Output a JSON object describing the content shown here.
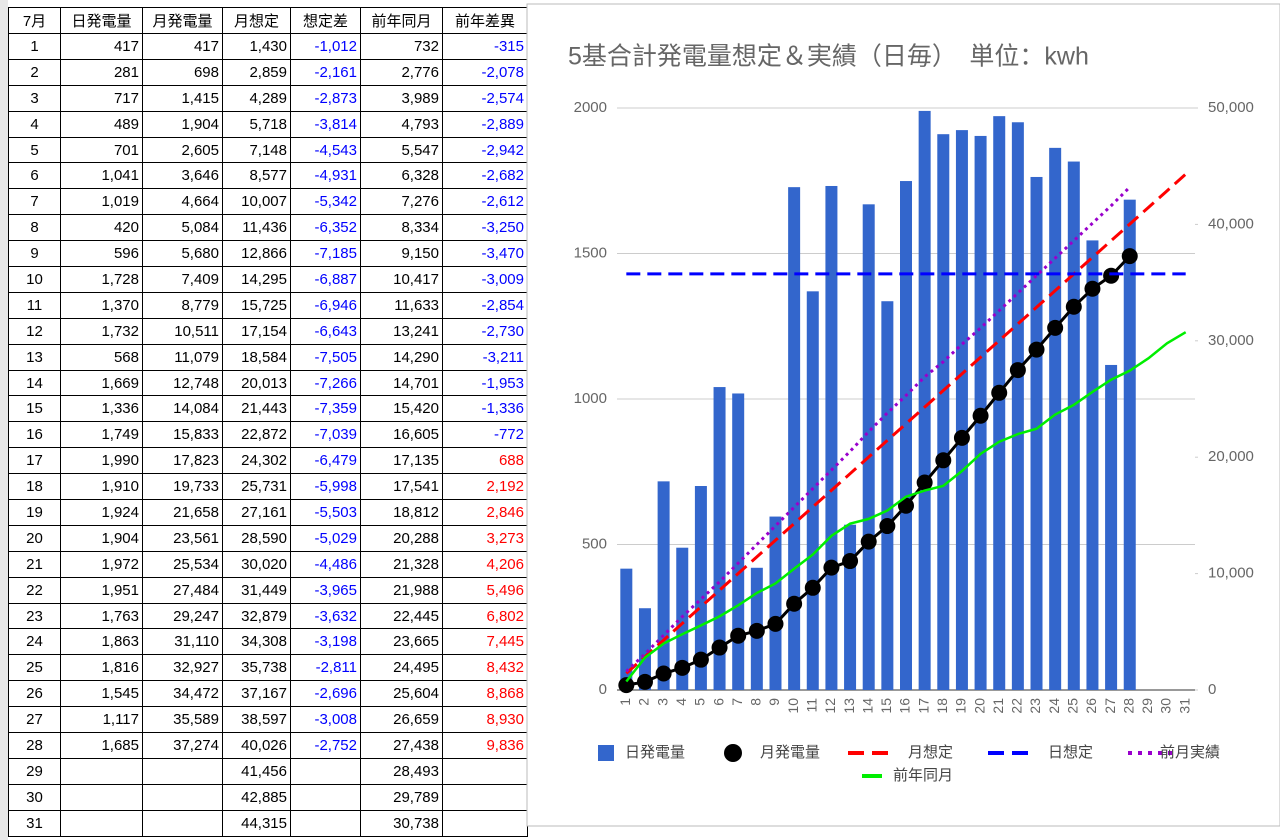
{
  "table": {
    "header": [
      "7月",
      "日発電量",
      "月発電量",
      "月想定",
      "想定差",
      "前年同月",
      "前年差異"
    ],
    "rows": [
      [
        "1",
        "417",
        "417",
        "1,430",
        "-1,012",
        "732",
        "-315"
      ],
      [
        "2",
        "281",
        "698",
        "2,859",
        "-2,161",
        "2,776",
        "-2,078"
      ],
      [
        "3",
        "717",
        "1,415",
        "4,289",
        "-2,873",
        "3,989",
        "-2,574"
      ],
      [
        "4",
        "489",
        "1,904",
        "5,718",
        "-3,814",
        "4,793",
        "-2,889"
      ],
      [
        "5",
        "701",
        "2,605",
        "7,148",
        "-4,543",
        "5,547",
        "-2,942"
      ],
      [
        "6",
        "1,041",
        "3,646",
        "8,577",
        "-4,931",
        "6,328",
        "-2,682"
      ],
      [
        "7",
        "1,019",
        "4,664",
        "10,007",
        "-5,342",
        "7,276",
        "-2,612"
      ],
      [
        "8",
        "420",
        "5,084",
        "11,436",
        "-6,352",
        "8,334",
        "-3,250"
      ],
      [
        "9",
        "596",
        "5,680",
        "12,866",
        "-7,185",
        "9,150",
        "-3,470"
      ],
      [
        "10",
        "1,728",
        "7,409",
        "14,295",
        "-6,887",
        "10,417",
        "-3,009"
      ],
      [
        "11",
        "1,370",
        "8,779",
        "15,725",
        "-6,946",
        "11,633",
        "-2,854"
      ],
      [
        "12",
        "1,732",
        "10,511",
        "17,154",
        "-6,643",
        "13,241",
        "-2,730"
      ],
      [
        "13",
        "568",
        "11,079",
        "18,584",
        "-7,505",
        "14,290",
        "-3,211"
      ],
      [
        "14",
        "1,669",
        "12,748",
        "20,013",
        "-7,266",
        "14,701",
        "-1,953"
      ],
      [
        "15",
        "1,336",
        "14,084",
        "21,443",
        "-7,359",
        "15,420",
        "-1,336"
      ],
      [
        "16",
        "1,749",
        "15,833",
        "22,872",
        "-7,039",
        "16,605",
        "-772"
      ],
      [
        "17",
        "1,990",
        "17,823",
        "24,302",
        "-6,479",
        "17,135",
        "688"
      ],
      [
        "18",
        "1,910",
        "19,733",
        "25,731",
        "-5,998",
        "17,541",
        "2,192"
      ],
      [
        "19",
        "1,924",
        "21,658",
        "27,161",
        "-5,503",
        "18,812",
        "2,846"
      ],
      [
        "20",
        "1,904",
        "23,561",
        "28,590",
        "-5,029",
        "20,288",
        "3,273"
      ],
      [
        "21",
        "1,972",
        "25,534",
        "30,020",
        "-4,486",
        "21,328",
        "4,206"
      ],
      [
        "22",
        "1,951",
        "27,484",
        "31,449",
        "-3,965",
        "21,988",
        "5,496"
      ],
      [
        "23",
        "1,763",
        "29,247",
        "32,879",
        "-3,632",
        "22,445",
        "6,802"
      ],
      [
        "24",
        "1,863",
        "31,110",
        "34,308",
        "-3,198",
        "23,665",
        "7,445"
      ],
      [
        "25",
        "1,816",
        "32,927",
        "35,738",
        "-2,811",
        "24,495",
        "8,432"
      ],
      [
        "26",
        "1,545",
        "34,472",
        "37,167",
        "-2,696",
        "25,604",
        "8,868"
      ],
      [
        "27",
        "1,117",
        "35,589",
        "38,597",
        "-3,008",
        "26,659",
        "8,930"
      ],
      [
        "28",
        "1,685",
        "37,274",
        "40,026",
        "-2,752",
        "27,438",
        "9,836"
      ],
      [
        "29",
        null,
        null,
        "41,456",
        null,
        "28,493",
        null
      ],
      [
        "30",
        null,
        null,
        "42,885",
        null,
        "29,789",
        null
      ],
      [
        "31",
        null,
        null,
        "44,315",
        null,
        "30,738",
        null
      ]
    ]
  },
  "chart_data": {
    "type": "combo",
    "title": "5基合計発電量想定＆実績（日毎）　単位：kwh",
    "categories": [
      "1",
      "2",
      "3",
      "4",
      "5",
      "6",
      "7",
      "8",
      "9",
      "10",
      "11",
      "12",
      "13",
      "14",
      "15",
      "16",
      "17",
      "18",
      "19",
      "20",
      "21",
      "22",
      "23",
      "24",
      "25",
      "26",
      "27",
      "28",
      "29",
      "30",
      "31"
    ],
    "ylim": [
      0,
      2000
    ],
    "yticks": [
      0,
      500,
      1000,
      1500,
      2000
    ],
    "y2lim": [
      0,
      50000
    ],
    "y2ticks": [
      0,
      {
        "value": 10000,
        "label": "10,000"
      },
      {
        "value": 20000,
        "label": "20,000"
      },
      {
        "value": 30000,
        "label": "30,000"
      },
      {
        "value": 40000,
        "label": "40,000"
      },
      {
        "value": 50000,
        "label": "50,000"
      }
    ],
    "grid": true,
    "series": [
      {
        "name": "日発電量",
        "type": "bar",
        "color": "#3366cc",
        "values": [
          417,
          281,
          717,
          489,
          701,
          1041,
          1019,
          420,
          596,
          1728,
          1370,
          1732,
          568,
          1669,
          1336,
          1749,
          1990,
          1910,
          1924,
          1904,
          1972,
          1951,
          1763,
          1863,
          1816,
          1545,
          1117,
          1685,
          null,
          null,
          null
        ]
      },
      {
        "name": "月発電量",
        "type": "dots",
        "axis": "y2",
        "color": "#000000",
        "values": [
          417,
          698,
          1415,
          1904,
          2605,
          3646,
          4664,
          5084,
          5680,
          7409,
          8779,
          10511,
          11079,
          12748,
          14084,
          15833,
          17823,
          19733,
          21658,
          23561,
          25534,
          27484,
          29247,
          31110,
          32927,
          34472,
          35589,
          37274,
          null,
          null,
          null
        ]
      },
      {
        "name": "月想定",
        "type": "dashed",
        "axis": "y2",
        "color": "#ff0000",
        "values": [
          1430,
          2859,
          4289,
          5718,
          7148,
          8577,
          10007,
          11436,
          12866,
          14295,
          15725,
          17154,
          18584,
          20013,
          21443,
          22872,
          24302,
          25731,
          27161,
          28590,
          30020,
          31449,
          32879,
          34308,
          35738,
          37167,
          38597,
          40026,
          41456,
          42885,
          44315
        ]
      },
      {
        "name": "日想定",
        "type": "dashed",
        "color": "#0000ff",
        "values": [
          1430,
          1430,
          1430,
          1430,
          1430,
          1430,
          1430,
          1430,
          1430,
          1430,
          1430,
          1430,
          1430,
          1430,
          1430,
          1430,
          1430,
          1430,
          1430,
          1430,
          1430,
          1430,
          1430,
          1430,
          1430,
          1430,
          1430,
          1430,
          1430,
          1430,
          1430
        ]
      },
      {
        "name": "前月実績",
        "type": "dotted",
        "axis": "y2",
        "color": "#9900cc",
        "values": [
          1600,
          3100,
          4700,
          6300,
          7800,
          9300,
          10900,
          12500,
          14100,
          15700,
          17300,
          18900,
          20500,
          22200,
          23800,
          25300,
          26900,
          28200,
          29700,
          31100,
          32600,
          34100,
          35600,
          37100,
          38600,
          40100,
          41600,
          43200,
          null,
          null,
          null
        ]
      },
      {
        "name": "前年同月",
        "type": "line",
        "axis": "y2",
        "color": "#00ee00",
        "values": [
          732,
          2776,
          3989,
          4793,
          5547,
          6328,
          7276,
          8334,
          9150,
          10417,
          11633,
          13241,
          14290,
          14701,
          15420,
          16605,
          17135,
          17541,
          18812,
          20288,
          21328,
          21988,
          22445,
          23665,
          24495,
          25604,
          26659,
          27438,
          28493,
          29789,
          30738
        ]
      }
    ]
  }
}
